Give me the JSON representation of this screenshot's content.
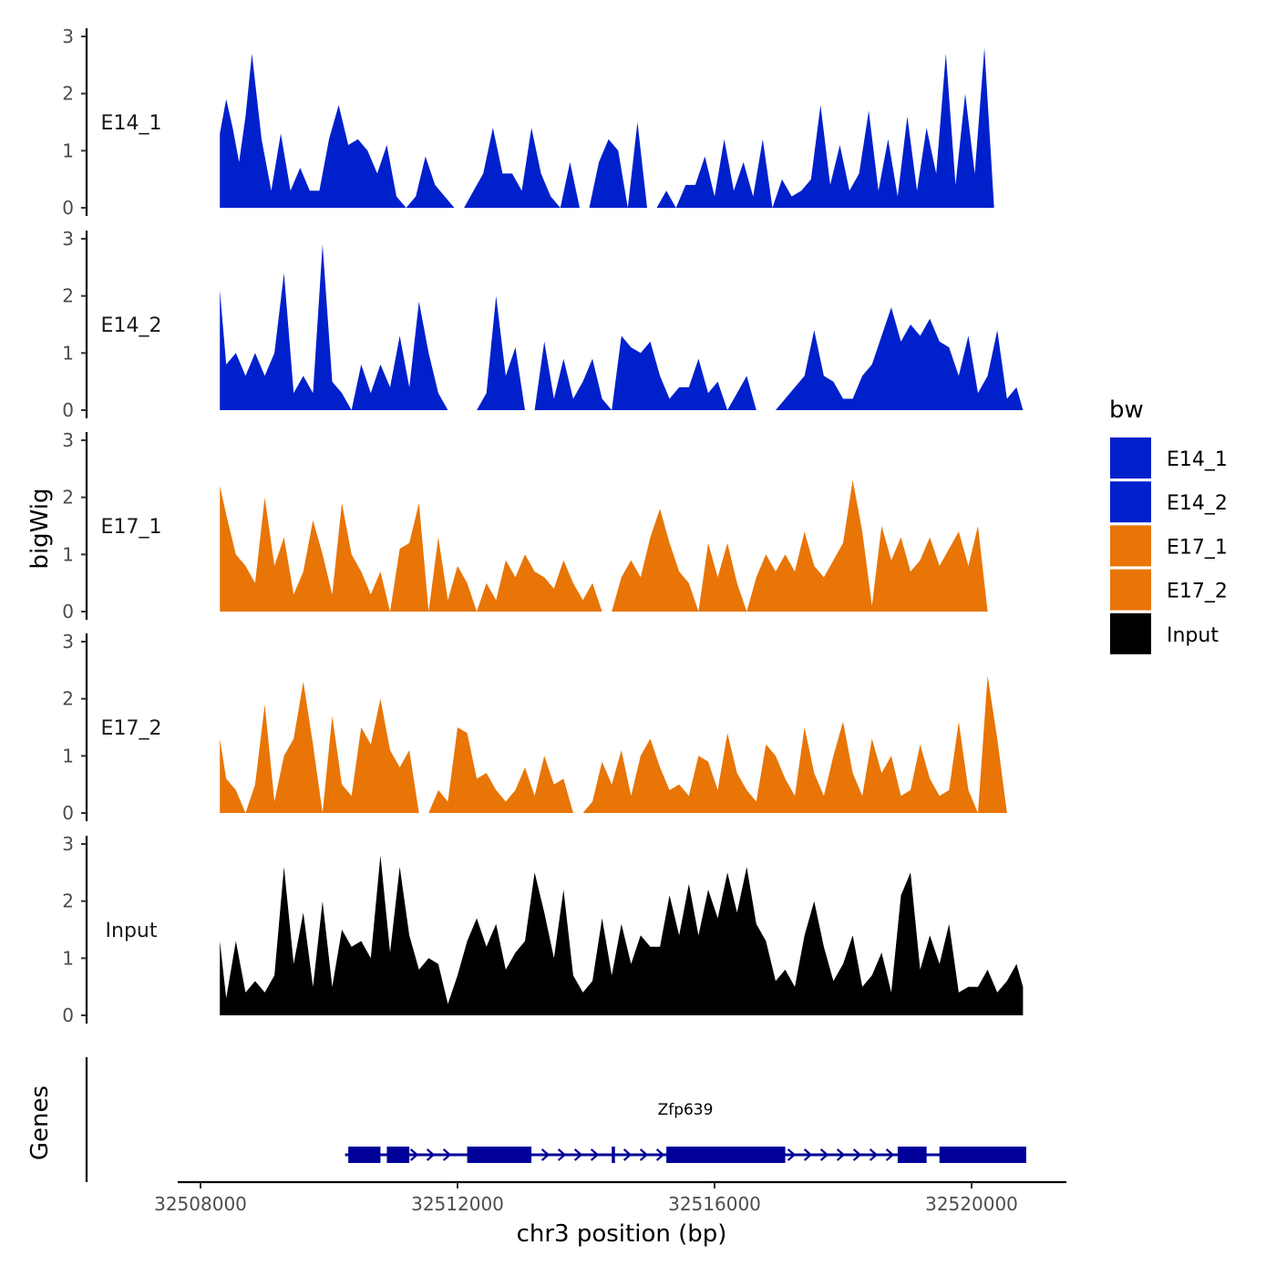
{
  "chart_data": {
    "type": "area",
    "title": "",
    "xlabel": "chr3 position (bp)",
    "ylabel": "bigWig",
    "genes_label": "Genes",
    "xlim": [
      32507700,
      32521300
    ],
    "ylim": [
      0,
      3
    ],
    "yticks": [
      0,
      1,
      2,
      3
    ],
    "xticks": [
      32508000,
      32512000,
      32516000,
      32520000
    ],
    "xtick_labels": [
      "32508000",
      "32512000",
      "32516000",
      "32520000"
    ],
    "legend": {
      "title": "bw",
      "position": "right",
      "entries": [
        {
          "name": "E14_1",
          "color": "#0020CC"
        },
        {
          "name": "E14_2",
          "color": "#0020CC"
        },
        {
          "name": "E17_1",
          "color": "#E87506"
        },
        {
          "name": "E17_2",
          "color": "#E87506"
        },
        {
          "name": "Input",
          "color": "#000000"
        }
      ]
    },
    "series": [
      {
        "name": "E14_1",
        "color": "#0020CC",
        "x": [
          32508300,
          32508400,
          32508500,
          32508600,
          32508700,
          32508800,
          32508950,
          32509100,
          32509250,
          32509400,
          32509550,
          32509700,
          32509850,
          32510000,
          32510150,
          32510300,
          32510450,
          32510600,
          32510750,
          32510900,
          32511050,
          32511200,
          32511350,
          32511500,
          32511650,
          32511800,
          32511950,
          32512100,
          32512250,
          32512400,
          32512550,
          32512700,
          32512850,
          32513000,
          32513150,
          32513300,
          32513450,
          32513600,
          32513750,
          32513900,
          32514050,
          32514200,
          32514350,
          32514500,
          32514650,
          32514800,
          32514950,
          32515100,
          32515250,
          32515400,
          32515550,
          32515700,
          32515850,
          32516000,
          32516150,
          32516300,
          32516450,
          32516600,
          32516750,
          32516900,
          32517050,
          32517200,
          32517350,
          32517500,
          32517650,
          32517800,
          32517950,
          32518100,
          32518250,
          32518400,
          32518550,
          32518700,
          32518850,
          32519000,
          32519150,
          32519300,
          32519450,
          32519600,
          32519750,
          32519900,
          32520050,
          32520200,
          32520350,
          32520500,
          32520650,
          32520750,
          32520800
        ],
        "values": [
          1.3,
          1.9,
          1.4,
          0.8,
          1.6,
          2.7,
          1.2,
          0.3,
          1.3,
          0.3,
          0.7,
          0.3,
          0.3,
          1.2,
          1.8,
          1.1,
          1.2,
          1.0,
          0.6,
          1.1,
          0.2,
          0.0,
          0.2,
          0.9,
          0.4,
          0.2,
          0.0,
          0.0,
          0.3,
          0.6,
          1.4,
          0.6,
          0.6,
          0.3,
          1.4,
          0.6,
          0.2,
          0.0,
          0.8,
          0.0,
          0.0,
          0.8,
          1.2,
          1.0,
          0.0,
          1.5,
          0.0,
          0.0,
          0.3,
          0.0,
          0.4,
          0.4,
          0.9,
          0.2,
          1.2,
          0.3,
          0.8,
          0.2,
          1.2,
          0.0,
          0.5,
          0.2,
          0.3,
          0.5,
          1.8,
          0.4,
          1.1,
          0.3,
          0.6,
          1.7,
          0.3,
          1.2,
          0.2,
          1.6,
          0.3,
          1.4,
          0.6,
          2.7,
          0.4,
          2.0,
          0.6,
          2.8,
          0.0,
          0.0,
          0.0,
          0.0,
          0.0
        ]
      },
      {
        "name": "E14_2",
        "color": "#0020CC",
        "x": [
          32508300,
          32508400,
          32508550,
          32508700,
          32508850,
          32509000,
          32509150,
          32509300,
          32509450,
          32509600,
          32509750,
          32509900,
          32510050,
          32510200,
          32510350,
          32510500,
          32510650,
          32510800,
          32510950,
          32511100,
          32511250,
          32511400,
          32511550,
          32511700,
          32511850,
          32512000,
          32512150,
          32512300,
          32512450,
          32512600,
          32512750,
          32512900,
          32513050,
          32513200,
          32513350,
          32513500,
          32513650,
          32513800,
          32513950,
          32514100,
          32514250,
          32514400,
          32514550,
          32514700,
          32514850,
          32515000,
          32515150,
          32515300,
          32515450,
          32515600,
          32515750,
          32515900,
          32516050,
          32516200,
          32516350,
          32516500,
          32516650,
          32516800,
          32516950,
          32517100,
          32517250,
          32517400,
          32517550,
          32517700,
          32517850,
          32518000,
          32518150,
          32518300,
          32518450,
          32518600,
          32518750,
          32518900,
          32519050,
          32519200,
          32519350,
          32519500,
          32519650,
          32519800,
          32519950,
          32520100,
          32520250,
          32520400,
          32520550,
          32520700,
          32520800
        ],
        "values": [
          2.1,
          0.8,
          1.0,
          0.6,
          1.0,
          0.6,
          1.0,
          2.4,
          0.3,
          0.6,
          0.3,
          2.9,
          0.5,
          0.3,
          0.0,
          0.8,
          0.3,
          0.8,
          0.4,
          1.3,
          0.4,
          1.9,
          1.0,
          0.3,
          0.0,
          0.0,
          0.0,
          0.0,
          0.3,
          2.0,
          0.6,
          1.1,
          0.0,
          0.0,
          1.2,
          0.2,
          0.9,
          0.2,
          0.5,
          0.9,
          0.2,
          0.0,
          1.3,
          1.1,
          1.0,
          1.2,
          0.6,
          0.2,
          0.4,
          0.4,
          0.9,
          0.3,
          0.5,
          0.0,
          0.3,
          0.6,
          0.0,
          0.0,
          0.0,
          0.2,
          0.4,
          0.6,
          1.4,
          0.6,
          0.5,
          0.2,
          0.2,
          0.6,
          0.8,
          1.3,
          1.8,
          1.2,
          1.5,
          1.3,
          1.6,
          1.2,
          1.1,
          0.6,
          1.3,
          0.3,
          0.6,
          1.4,
          0.2,
          0.4,
          0.0
        ]
      },
      {
        "name": "E17_1",
        "color": "#E87506",
        "x": [
          32508300,
          32508400,
          32508550,
          32508700,
          32508850,
          32509000,
          32509150,
          32509300,
          32509450,
          32509600,
          32509750,
          32509900,
          32510050,
          32510200,
          32510350,
          32510500,
          32510650,
          32510800,
          32510950,
          32511100,
          32511250,
          32511400,
          32511550,
          32511700,
          32511850,
          32512000,
          32512150,
          32512300,
          32512450,
          32512600,
          32512750,
          32512900,
          32513050,
          32513200,
          32513350,
          32513500,
          32513650,
          32513800,
          32513950,
          32514100,
          32514250,
          32514400,
          32514550,
          32514700,
          32514850,
          32515000,
          32515150,
          32515300,
          32515450,
          32515600,
          32515750,
          32515900,
          32516050,
          32516200,
          32516350,
          32516500,
          32516650,
          32516800,
          32516950,
          32517100,
          32517250,
          32517400,
          32517550,
          32517700,
          32517850,
          32518000,
          32518150,
          32518300,
          32518450,
          32518600,
          32518750,
          32518900,
          32519050,
          32519200,
          32519350,
          32519500,
          32519650,
          32519800,
          32519950,
          32520100,
          32520250,
          32520400,
          32520550,
          32520700,
          32520800
        ],
        "values": [
          2.2,
          1.7,
          1.0,
          0.8,
          0.5,
          2.0,
          0.8,
          1.3,
          0.3,
          0.7,
          1.6,
          1.0,
          0.3,
          1.9,
          1.0,
          0.7,
          0.3,
          0.7,
          0.0,
          1.1,
          1.2,
          1.9,
          0.0,
          1.3,
          0.2,
          0.8,
          0.5,
          0.0,
          0.5,
          0.2,
          0.9,
          0.6,
          1.0,
          0.7,
          0.6,
          0.4,
          0.9,
          0.5,
          0.2,
          0.5,
          0.0,
          0.0,
          0.6,
          0.9,
          0.6,
          1.3,
          1.8,
          1.2,
          0.7,
          0.5,
          0.0,
          1.2,
          0.6,
          1.2,
          0.5,
          0.0,
          0.6,
          1.0,
          0.7,
          1.0,
          0.7,
          1.4,
          0.8,
          0.6,
          0.9,
          1.2,
          2.3,
          1.4,
          0.1,
          1.5,
          0.9,
          1.3,
          0.7,
          0.9,
          1.3,
          0.8,
          1.1,
          1.4,
          0.8,
          1.5,
          0.0,
          0.0,
          0.0,
          0.0,
          0.0
        ]
      },
      {
        "name": "E17_2",
        "color": "#E87506",
        "x": [
          32508300,
          32508400,
          32508550,
          32508700,
          32508850,
          32509000,
          32509150,
          32509300,
          32509450,
          32509600,
          32509750,
          32509900,
          32510050,
          32510200,
          32510350,
          32510500,
          32510650,
          32510800,
          32510950,
          32511100,
          32511250,
          32511400,
          32511550,
          32511700,
          32511850,
          32512000,
          32512150,
          32512300,
          32512450,
          32512600,
          32512750,
          32512900,
          32513050,
          32513200,
          32513350,
          32513500,
          32513650,
          32513800,
          32513950,
          32514100,
          32514250,
          32514400,
          32514550,
          32514700,
          32514850,
          32515000,
          32515150,
          32515300,
          32515450,
          32515600,
          32515750,
          32515900,
          32516050,
          32516200,
          32516350,
          32516500,
          32516650,
          32516800,
          32516950,
          32517100,
          32517250,
          32517400,
          32517550,
          32517700,
          32517850,
          32518000,
          32518150,
          32518300,
          32518450,
          32518600,
          32518750,
          32518900,
          32519050,
          32519200,
          32519350,
          32519500,
          32519650,
          32519800,
          32519950,
          32520100,
          32520250,
          32520400,
          32520550,
          32520700,
          32520800
        ],
        "values": [
          1.3,
          0.6,
          0.4,
          0.0,
          0.5,
          1.9,
          0.2,
          1.0,
          1.3,
          2.3,
          1.2,
          0.0,
          1.7,
          0.5,
          0.3,
          1.5,
          1.2,
          2.0,
          1.1,
          0.8,
          1.1,
          0.0,
          0.0,
          0.4,
          0.2,
          1.5,
          1.4,
          0.6,
          0.7,
          0.4,
          0.2,
          0.4,
          0.8,
          0.3,
          1.0,
          0.5,
          0.6,
          0.0,
          0.0,
          0.2,
          0.9,
          0.5,
          1.1,
          0.3,
          1.0,
          1.3,
          0.8,
          0.4,
          0.5,
          0.3,
          1.0,
          0.9,
          0.4,
          1.4,
          0.7,
          0.4,
          0.2,
          1.2,
          1.0,
          0.6,
          0.3,
          1.5,
          0.7,
          0.3,
          1.0,
          1.6,
          0.7,
          0.3,
          1.3,
          0.7,
          1.0,
          0.3,
          0.4,
          1.2,
          0.6,
          0.3,
          0.4,
          1.6,
          0.4,
          0.0,
          2.4,
          1.3,
          0.0,
          0.0,
          0.0
        ]
      },
      {
        "name": "Input",
        "color": "#000000",
        "x": [
          32508300,
          32508400,
          32508550,
          32508700,
          32508850,
          32509000,
          32509150,
          32509300,
          32509450,
          32509600,
          32509750,
          32509900,
          32510050,
          32510200,
          32510350,
          32510500,
          32510650,
          32510800,
          32510950,
          32511100,
          32511250,
          32511400,
          32511550,
          32511700,
          32511850,
          32512000,
          32512150,
          32512300,
          32512450,
          32512600,
          32512750,
          32512900,
          32513050,
          32513200,
          32513350,
          32513500,
          32513650,
          32513800,
          32513950,
          32514100,
          32514250,
          32514400,
          32514550,
          32514700,
          32514850,
          32515000,
          32515150,
          32515300,
          32515450,
          32515600,
          32515750,
          32515900,
          32516050,
          32516200,
          32516350,
          32516500,
          32516650,
          32516800,
          32516950,
          32517100,
          32517250,
          32517400,
          32517550,
          32517700,
          32517850,
          32518000,
          32518150,
          32518300,
          32518450,
          32518600,
          32518750,
          32518900,
          32519050,
          32519200,
          32519350,
          32519500,
          32519650,
          32519800,
          32519950,
          32520100,
          32520250,
          32520400,
          32520550,
          32520700,
          32520800
        ],
        "values": [
          1.3,
          0.3,
          1.3,
          0.4,
          0.6,
          0.4,
          0.7,
          2.6,
          0.9,
          1.8,
          0.5,
          2.0,
          0.5,
          1.5,
          1.2,
          1.3,
          1.0,
          2.8,
          1.1,
          2.6,
          1.4,
          0.8,
          1.0,
          0.9,
          0.2,
          0.7,
          1.3,
          1.7,
          1.2,
          1.6,
          0.8,
          1.1,
          1.3,
          2.5,
          1.8,
          1.0,
          2.2,
          0.7,
          0.4,
          0.6,
          1.7,
          0.7,
          1.6,
          0.9,
          1.4,
          1.2,
          1.2,
          2.1,
          1.4,
          2.3,
          1.4,
          2.2,
          1.7,
          2.5,
          1.8,
          2.6,
          1.6,
          1.3,
          0.6,
          0.8,
          0.5,
          1.4,
          2.0,
          1.2,
          0.6,
          0.9,
          1.4,
          0.5,
          0.7,
          1.1,
          0.4,
          2.1,
          2.5,
          0.8,
          1.4,
          0.9,
          1.6,
          0.4,
          0.5,
          0.5,
          0.8,
          0.4,
          0.6,
          0.9,
          0.5
        ]
      }
    ],
    "gene": {
      "name": "Zfp639",
      "strand": "+",
      "start": 32510250,
      "end": 32520850,
      "exons": [
        [
          32510300,
          32510800
        ],
        [
          32510900,
          32511250
        ],
        [
          32512150,
          32513150
        ],
        [
          32514400,
          32514450
        ],
        [
          32515250,
          32517100
        ],
        [
          32518850,
          32519300
        ],
        [
          32519500,
          32520850
        ]
      ],
      "color": "#000099"
    }
  }
}
